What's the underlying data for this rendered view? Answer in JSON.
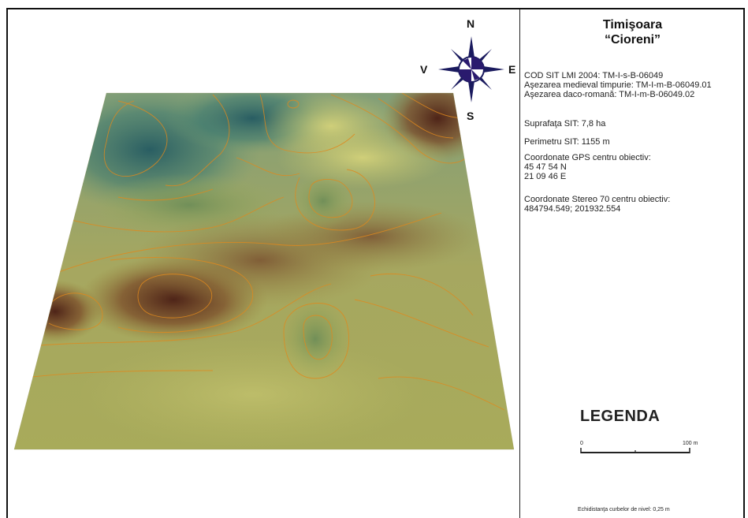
{
  "map": {
    "compass": {
      "n": "N",
      "s": "S",
      "e": "E",
      "w": "V"
    },
    "colors": {
      "low": "#2f6a6a",
      "mid": "#b7b85c",
      "high": "#5a2a1c",
      "contour": "#e08a1e"
    }
  },
  "panel": {
    "title_line1": "Timişoara",
    "title_line2": "“Cioreni”",
    "cod_sit": "COD SIT LMI 2004: TM-I-s-B-06049",
    "asezare_medieval": "Aşezarea medieval timpurie: TM-I-m-B-06049.01",
    "asezare_daco": "Aşezarea daco-romană: TM-I-m-B-06049.02",
    "suprafata": "Suprafaţa SIT: 7,8 ha",
    "perimetru": "Perimetru SIT: 1155 m",
    "gps_label": "Coordonate GPS centru obiectiv:",
    "gps_lat": "45 47 54 N",
    "gps_lon": "21 09 46 E",
    "stereo_label": "Coordonate Stereo 70 centru obiectiv:",
    "stereo_value": "484794.549; 201932.554",
    "legend_title": "LEGENDA",
    "scale_start": "0",
    "scale_end": "100 m",
    "equidistance": "Echidistanţa curbelor de nivel: 0,25 m"
  }
}
